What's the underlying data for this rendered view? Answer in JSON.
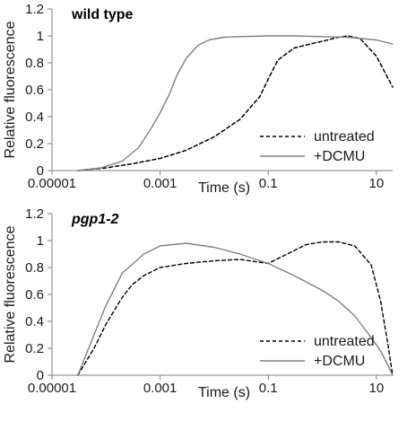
{
  "chart_data": [
    {
      "type": "line",
      "title": "wild type",
      "title_italic": false,
      "xlabel": "Time (s)",
      "ylabel": "Relative fluorescence",
      "x_scale": "log10",
      "xlim": [
        1e-05,
        20
      ],
      "ylim": [
        0,
        1.2
      ],
      "x_ticks": [
        "0.00001",
        "0.001",
        "0.1",
        "10"
      ],
      "y_ticks": [
        "0",
        "0.2",
        "0.4",
        "0.6",
        "0.8",
        "1",
        "1.2"
      ],
      "grid": false,
      "legend_position": "bottom-right",
      "series": [
        {
          "name": "untreated",
          "style": "dashed",
          "color": "#000000",
          "x": [
            3e-05,
            0.0001,
            0.0003,
            0.001,
            0.003,
            0.01,
            0.03,
            0.07,
            0.1,
            0.15,
            0.3,
            0.6,
            1.0,
            2.0,
            3.0,
            5.0,
            10.0,
            20.0
          ],
          "y": [
            0.0,
            0.02,
            0.05,
            0.09,
            0.15,
            0.25,
            0.38,
            0.55,
            0.68,
            0.82,
            0.91,
            0.94,
            0.96,
            0.99,
            1.0,
            0.98,
            0.85,
            0.62
          ]
        },
        {
          "name": "+DCMU",
          "style": "solid",
          "color": "#808080",
          "x": [
            3e-05,
            8e-05,
            0.0002,
            0.0004,
            0.0007,
            0.001,
            0.0015,
            0.002,
            0.003,
            0.005,
            0.008,
            0.015,
            0.03,
            0.1,
            0.3,
            1.0,
            3.0,
            10.0,
            20.0
          ],
          "y": [
            0.0,
            0.02,
            0.07,
            0.17,
            0.32,
            0.43,
            0.57,
            0.7,
            0.83,
            0.93,
            0.97,
            0.99,
            0.995,
            1.0,
            1.0,
            0.995,
            0.99,
            0.97,
            0.94
          ]
        }
      ]
    },
    {
      "type": "line",
      "title": "pgp1-2",
      "title_italic": true,
      "xlabel": "Time (s)",
      "ylabel": "Relative fluorescence",
      "x_scale": "log10",
      "xlim": [
        1e-05,
        20
      ],
      "ylim": [
        0,
        1.2
      ],
      "x_ticks": [
        "0.00001",
        "0.001",
        "0.1",
        "10"
      ],
      "y_ticks": [
        "0",
        "0.2",
        "0.4",
        "0.6",
        "0.8",
        "1",
        "1.2"
      ],
      "grid": false,
      "legend_position": "bottom-right",
      "series": [
        {
          "name": "untreated",
          "style": "dashed",
          "color": "#000000",
          "x": [
            3e-05,
            6e-05,
            0.0001,
            0.0002,
            0.0003,
            0.0005,
            0.001,
            0.003,
            0.01,
            0.03,
            0.1,
            0.2,
            0.5,
            1.0,
            2.0,
            4.0,
            8.0,
            12.0,
            16.0,
            20.0
          ],
          "y": [
            0.0,
            0.2,
            0.38,
            0.58,
            0.67,
            0.74,
            0.8,
            0.83,
            0.85,
            0.86,
            0.83,
            0.89,
            0.97,
            0.99,
            0.99,
            0.96,
            0.82,
            0.55,
            0.25,
            0.0
          ],
          "line_width": 1.4
        },
        {
          "name": "+DCMU",
          "style": "solid",
          "color": "#808080",
          "x": [
            3e-05,
            6e-05,
            0.0001,
            0.0002,
            0.0003,
            0.0005,
            0.001,
            0.003,
            0.01,
            0.03,
            0.1,
            0.3,
            1.0,
            2.0,
            4.0,
            8.0,
            12.0,
            16.0,
            20.0
          ],
          "y": [
            0.0,
            0.3,
            0.52,
            0.76,
            0.82,
            0.9,
            0.96,
            0.98,
            0.95,
            0.9,
            0.83,
            0.74,
            0.63,
            0.55,
            0.44,
            0.28,
            0.18,
            0.08,
            0.0
          ]
        }
      ]
    }
  ]
}
